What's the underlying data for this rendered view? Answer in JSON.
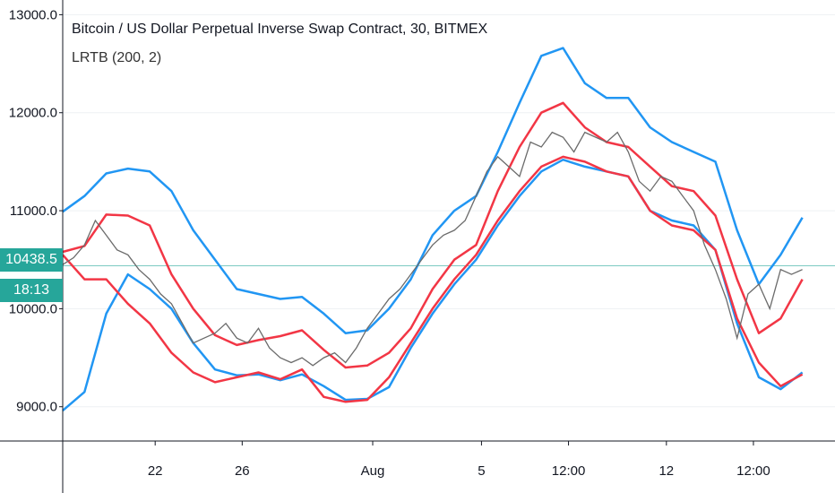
{
  "chart_data": {
    "type": "line",
    "title": "Bitcoin / US Dollar Perpetual Inverse Swap Contract, 30, BITMEX",
    "subtitle": "LRTB (200, 2)",
    "y_ticks": [
      "13000.0",
      "12000.0",
      "11000.0",
      "10000.0",
      "9000.0"
    ],
    "y_tick_values": [
      13000,
      12000,
      11000,
      10000,
      9000
    ],
    "ylim": [
      8650,
      13150
    ],
    "x_ticks": [
      "22",
      "26",
      "Aug",
      "5",
      "12:00",
      "12",
      "12:00"
    ],
    "x_tick_positions": [
      8.5,
      16.5,
      28.5,
      38.5,
      46.5,
      55.5,
      63.5
    ],
    "xlim": [
      0,
      71
    ],
    "current_price": "10438.5",
    "current_price_value": 10438.5,
    "countdown": "18:13",
    "colors": {
      "upper": "#f23645",
      "lower": "#2196f3",
      "price": "#6b6b6b",
      "price_line": "#26a69a"
    },
    "series": [
      {
        "name": "",
        "color": "#2196f3",
        "x": [
          0,
          2,
          4,
          6,
          8,
          10,
          12,
          14,
          16,
          18,
          20,
          22,
          24,
          26,
          28,
          30,
          32,
          34,
          36,
          38,
          40,
          42,
          44,
          46,
          48,
          50,
          52,
          54,
          56,
          58,
          60,
          62,
          64,
          66,
          68
        ],
        "values": [
          10990,
          11150,
          11380,
          11430,
          11400,
          11200,
          10800,
          10500,
          10200,
          10150,
          10100,
          10120,
          9950,
          9750,
          9780,
          10000,
          10300,
          10750,
          11000,
          11150,
          11600,
          12100,
          12580,
          12660,
          12300,
          12150,
          12150,
          11850,
          11700,
          11600,
          11500,
          10800,
          10250,
          10550,
          10930
        ]
      },
      {
        "name": "",
        "color": "#f23645",
        "x": [
          0,
          2,
          4,
          6,
          8,
          10,
          12,
          14,
          16,
          18,
          20,
          22,
          24,
          26,
          28,
          30,
          32,
          34,
          36,
          38,
          40,
          42,
          44,
          46,
          48,
          50,
          52,
          54,
          56,
          58,
          60,
          62,
          64,
          66,
          68
        ],
        "values": [
          10580,
          10640,
          10960,
          10950,
          10850,
          10350,
          10000,
          9730,
          9630,
          9680,
          9720,
          9780,
          9580,
          9400,
          9420,
          9550,
          9800,
          10200,
          10500,
          10650,
          11200,
          11650,
          12000,
          12100,
          11850,
          11700,
          11650,
          11450,
          11250,
          11200,
          10950,
          10300,
          9750,
          9900,
          10300
        ]
      },
      {
        "name": "",
        "color": "#2196f3",
        "x": [
          0,
          2,
          4,
          6,
          8,
          10,
          12,
          14,
          16,
          18,
          20,
          22,
          24,
          26,
          28,
          30,
          32,
          34,
          36,
          38,
          40,
          42,
          44,
          46,
          48,
          50,
          52,
          54,
          56,
          58,
          60,
          62,
          64,
          66,
          68
        ],
        "values": [
          8960,
          9150,
          9950,
          10350,
          10200,
          10000,
          9650,
          9380,
          9320,
          9330,
          9270,
          9330,
          9210,
          9070,
          9080,
          9200,
          9600,
          9950,
          10250,
          10500,
          10850,
          11150,
          11400,
          11520,
          11450,
          11400,
          11350,
          11000,
          10900,
          10850,
          10600,
          9850,
          9300,
          9180,
          9350
        ]
      },
      {
        "name": "",
        "color": "#f23645",
        "x": [
          0,
          2,
          4,
          6,
          8,
          10,
          12,
          14,
          16,
          18,
          20,
          22,
          24,
          26,
          28,
          30,
          32,
          34,
          36,
          38,
          40,
          42,
          44,
          46,
          48,
          50,
          52,
          54,
          56,
          58,
          60,
          62,
          64,
          66,
          68
        ],
        "values": [
          10550,
          10300,
          10300,
          10050,
          9850,
          9550,
          9350,
          9250,
          9300,
          9350,
          9280,
          9380,
          9100,
          9050,
          9070,
          9300,
          9650,
          10000,
          10300,
          10550,
          10900,
          11200,
          11450,
          11550,
          11500,
          11400,
          11350,
          11000,
          10850,
          10800,
          10600,
          9900,
          9450,
          9210,
          9330
        ]
      }
    ],
    "price": {
      "x": [
        0,
        1,
        2,
        3,
        4,
        5,
        6,
        7,
        8,
        9,
        10,
        11,
        12,
        13,
        14,
        15,
        16,
        17,
        18,
        19,
        20,
        21,
        22,
        23,
        24,
        25,
        26,
        27,
        28,
        29,
        30,
        31,
        32,
        33,
        34,
        35,
        36,
        37,
        38,
        39,
        40,
        41,
        42,
        43,
        44,
        45,
        46,
        47,
        48,
        49,
        50,
        51,
        52,
        53,
        54,
        55,
        56,
        57,
        58,
        59,
        60,
        61,
        62,
        63,
        64,
        65,
        66,
        67,
        68
      ],
      "values": [
        10450,
        10520,
        10650,
        10900,
        10750,
        10600,
        10550,
        10400,
        10300,
        10150,
        10050,
        9850,
        9650,
        9700,
        9750,
        9850,
        9700,
        9650,
        9800,
        9600,
        9500,
        9450,
        9500,
        9420,
        9500,
        9550,
        9450,
        9600,
        9800,
        9950,
        10100,
        10200,
        10350,
        10500,
        10650,
        10750,
        10800,
        10900,
        11150,
        11400,
        11550,
        11450,
        11350,
        11700,
        11650,
        11800,
        11750,
        11600,
        11800,
        11750,
        11700,
        11800,
        11600,
        11300,
        11200,
        11350,
        11300,
        11150,
        11000,
        10650,
        10400,
        10100,
        9700,
        10150,
        10250,
        10000,
        10400,
        10350,
        10400
      ]
    }
  }
}
